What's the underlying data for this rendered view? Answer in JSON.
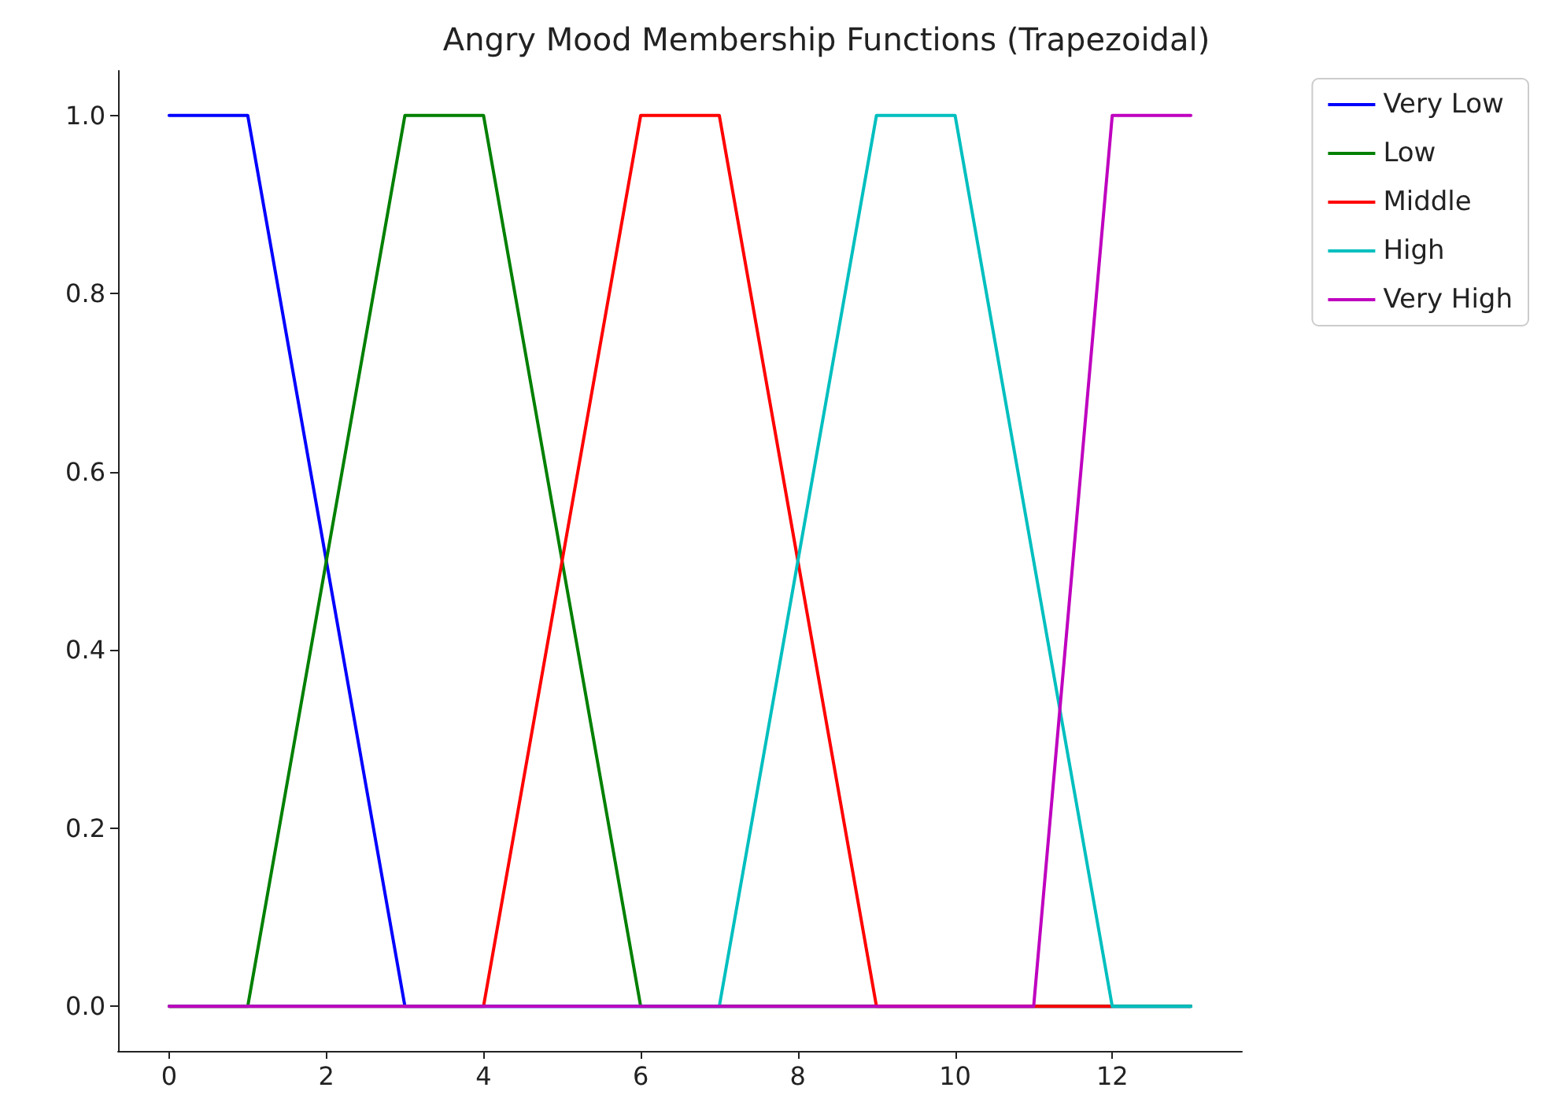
{
  "chart_data": {
    "type": "line",
    "title": "Angry Mood Membership Functions (Trapezoidal)",
    "xlim": [
      -0.65,
      13.65
    ],
    "xticks": [
      0,
      2,
      4,
      6,
      8,
      10,
      12
    ],
    "ylim": [
      -0.05,
      1.05
    ],
    "yticks": [
      {
        "value": 0,
        "label": "0.0"
      },
      0.2,
      0.4,
      0.6,
      0.8,
      {
        "value": 1,
        "label": "1.0"
      }
    ],
    "grid": false,
    "legend": "top right",
    "marker": "none",
    "line_style": "solid",
    "series": [
      {
        "name": "Very Low",
        "color": "#0000ff",
        "x": [
          0,
          1,
          3,
          13
        ],
        "values": [
          1,
          1,
          0,
          0
        ]
      },
      {
        "name": "Low",
        "color": "#008000",
        "x": [
          0,
          1,
          3,
          4,
          6,
          13
        ],
        "values": [
          0,
          0,
          1,
          1,
          0,
          0
        ]
      },
      {
        "name": "Middle",
        "color": "#ff0000",
        "x": [
          0,
          4,
          6,
          7,
          9,
          12
        ],
        "values": [
          0,
          0,
          1,
          1,
          0,
          0
        ]
      },
      {
        "name": "High",
        "color": "#00bfbf",
        "x": [
          0,
          7,
          9,
          10,
          12,
          13
        ],
        "values": [
          0,
          0,
          1,
          1,
          0,
          0
        ]
      },
      {
        "name": "Very High",
        "color": "#bf00bf",
        "x": [
          0,
          11,
          12,
          13
        ],
        "values": [
          0,
          0,
          1,
          1
        ]
      }
    ]
  }
}
